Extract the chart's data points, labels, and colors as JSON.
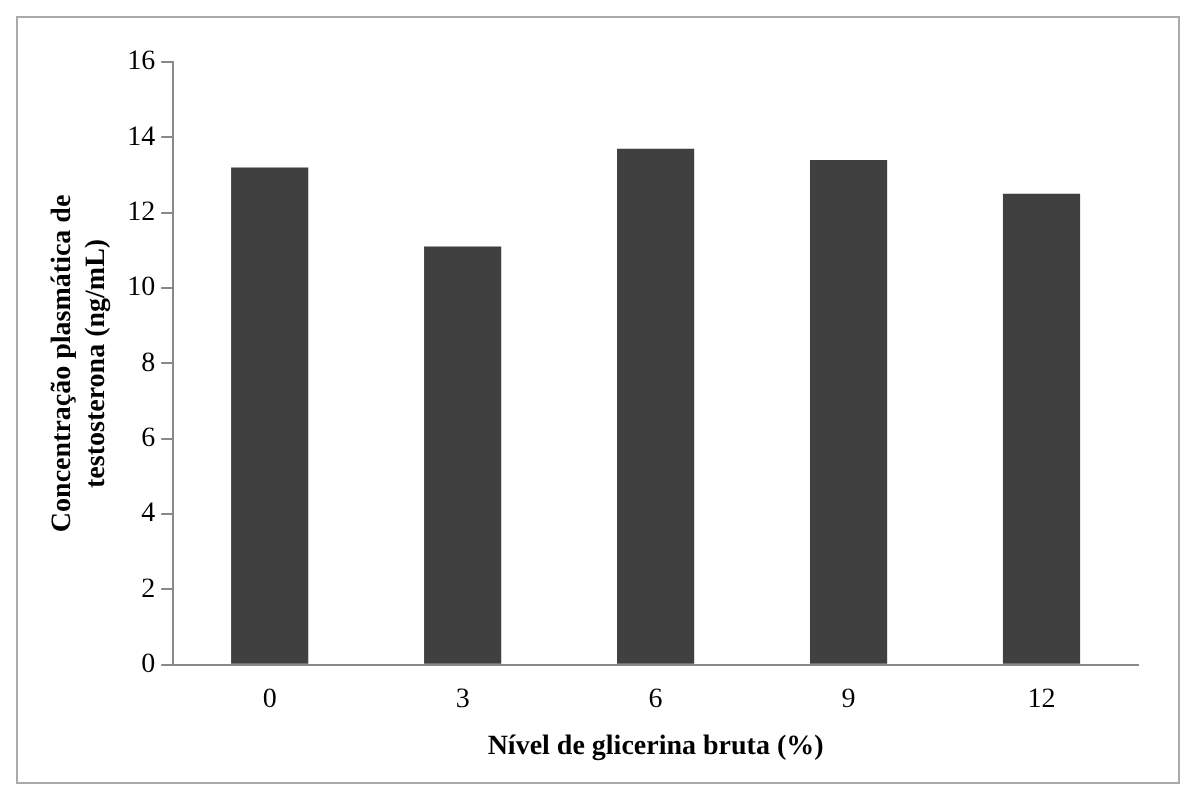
{
  "chart_data": {
    "type": "bar",
    "xlabel": "Nível de glicerina bruta (%)",
    "ylabel": "Concentração plasmática de testosterona (ng/mL)",
    "categories": [
      "0",
      "3",
      "6",
      "9",
      "12"
    ],
    "values": [
      13.2,
      11.1,
      13.7,
      13.4,
      12.5
    ],
    "color": "#404040",
    "ylim": [
      0,
      16
    ],
    "yticks": [
      0,
      2,
      4,
      6,
      8,
      10,
      12,
      14,
      16
    ],
    "grid": false,
    "legend": false
  }
}
